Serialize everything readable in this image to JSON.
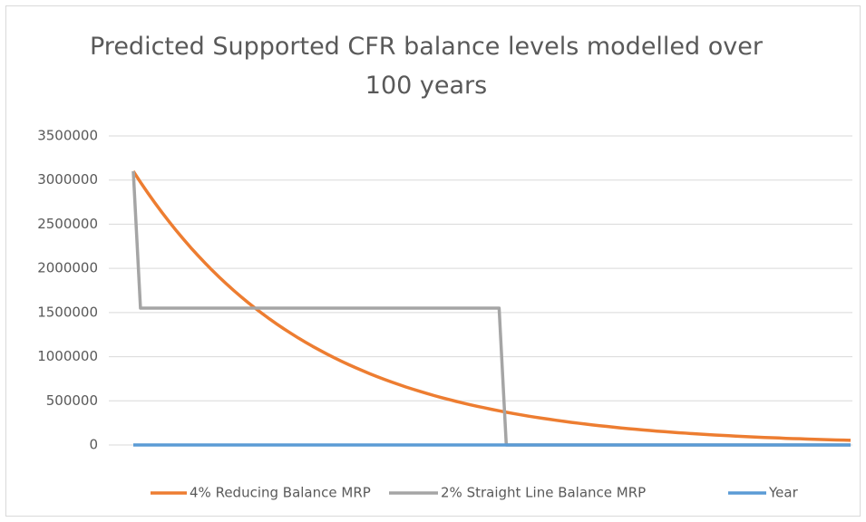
{
  "chart_data": {
    "type": "line",
    "title": "Predicted Supported CFR balance levels modelled over 100 years",
    "ylim": [
      0,
      3500000
    ],
    "yticks": [
      0,
      500000,
      1000000,
      1500000,
      2000000,
      2500000,
      3000000,
      3500000
    ],
    "grid": true,
    "legend": "bottom",
    "series": [
      {
        "name": "4% Reducing Balance MRP",
        "color": "#ed7d31",
        "values": [
          3100000,
          2976000,
          2857000,
          2743000,
          2633000,
          2528000,
          2427000,
          2330000,
          2236000,
          2147000,
          2061000,
          1978000,
          1899000,
          1823000,
          1750000,
          1680000,
          1613000,
          1549000,
          1487000,
          1427000,
          1370000,
          1315000,
          1263000,
          1212000,
          1164000,
          1117000,
          1073000,
          1030000,
          989000,
          949000,
          911000,
          875000,
          840000,
          806000,
          774000,
          743000,
          713000,
          685000,
          657000,
          631000,
          606000,
          582000,
          558000,
          536000,
          515000,
          494000,
          474000,
          455000,
          437000,
          420000,
          403000,
          387000,
          371000,
          356000,
          342000,
          328000,
          315000,
          303000,
          291000,
          279000,
          268000,
          257000,
          247000,
          237000,
          227000,
          218000,
          210000,
          201000,
          193000,
          185000,
          178000,
          171000,
          164000,
          157000,
          151000,
          145000,
          139000,
          134000,
          128000,
          123000,
          118000,
          113000,
          109000,
          105000,
          100000,
          96000,
          92000,
          89000,
          85000,
          82000,
          79000,
          75000,
          72000,
          70000,
          67000,
          64000,
          62000,
          59000,
          57000,
          55000,
          52000
        ]
      },
      {
        "name": "2% Straight Line Balance MRP",
        "color": "#a5a5a5",
        "values": [
          3100000,
          1550000,
          1550000,
          1550000,
          1550000,
          1550000,
          1550000,
          1550000,
          1550000,
          1550000,
          1550000,
          1550000,
          1550000,
          1550000,
          1550000,
          1550000,
          1550000,
          1550000,
          1550000,
          1550000,
          1550000,
          1550000,
          1550000,
          1550000,
          1550000,
          1550000,
          1550000,
          1550000,
          1550000,
          1550000,
          1550000,
          1550000,
          1550000,
          1550000,
          1550000,
          1550000,
          1550000,
          1550000,
          1550000,
          1550000,
          1550000,
          1550000,
          1550000,
          1550000,
          1550000,
          1550000,
          1550000,
          1550000,
          1550000,
          1550000,
          1550000,
          1550000,
          0,
          0,
          0,
          0,
          0,
          0,
          0,
          0,
          0,
          0,
          0,
          0,
          0,
          0,
          0,
          0,
          0,
          0,
          0,
          0,
          0,
          0,
          0,
          0,
          0,
          0,
          0,
          0,
          0,
          0,
          0,
          0,
          0,
          0,
          0,
          0,
          0,
          0,
          0,
          0,
          0,
          0,
          0,
          0,
          0,
          0,
          0,
          0,
          0
        ]
      },
      {
        "name": "Year",
        "color": "#5b9bd5",
        "values": [
          1,
          2,
          3,
          4,
          5,
          6,
          7,
          8,
          9,
          10,
          11,
          12,
          13,
          14,
          15,
          16,
          17,
          18,
          19,
          20,
          21,
          22,
          23,
          24,
          25,
          26,
          27,
          28,
          29,
          30,
          31,
          32,
          33,
          34,
          35,
          36,
          37,
          38,
          39,
          40,
          41,
          42,
          43,
          44,
          45,
          46,
          47,
          48,
          49,
          50,
          51,
          52,
          53,
          54,
          55,
          56,
          57,
          58,
          59,
          60,
          61,
          62,
          63,
          64,
          65,
          66,
          67,
          68,
          69,
          70,
          71,
          72,
          73,
          74,
          75,
          76,
          77,
          78,
          79,
          80,
          81,
          82,
          83,
          84,
          85,
          86,
          87,
          88,
          89,
          90,
          91,
          92,
          93,
          94,
          95,
          96,
          97,
          98,
          99,
          100,
          101
        ]
      }
    ]
  }
}
